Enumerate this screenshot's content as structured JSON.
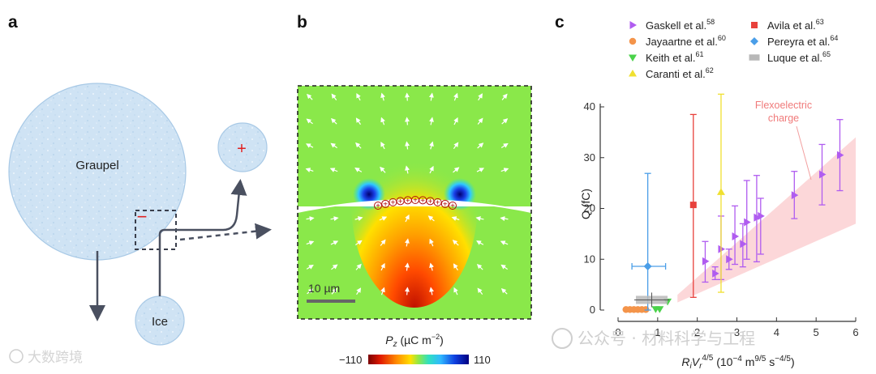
{
  "panels": {
    "a": {
      "label": "a",
      "big_particle": "Graupel",
      "small_particle": "Ice",
      "big_charge": "−",
      "small_charge": "+"
    },
    "b": {
      "label": "b",
      "scalebar": "10 µm",
      "colorbar_title_main": "P",
      "colorbar_title_sub": "z",
      "colorbar_title_unit": " (µC m",
      "colorbar_title_exp": "−2",
      "colorbar_title_close": ")",
      "colorbar_min": "−110",
      "colorbar_max": "110",
      "surface_charge": "+"
    },
    "c": {
      "label": "c",
      "ylabel": "Q (fC)",
      "xlabel_a": "R",
      "xlabel_a_sub": "i",
      "xlabel_b": "V",
      "xlabel_b_sub": "r",
      "xlabel_b_sup": "4/5",
      "xlabel_rest": " (10",
      "xlabel_exp1": "−4",
      "xlabel_m": " m",
      "xlabel_exp2": "9/5",
      "xlabel_s": " s",
      "xlabel_exp3": "−4/5",
      "xlabel_close": ")",
      "band_label_line1": "Flexoelectric",
      "band_label_line2": "charge",
      "x_ticks": [
        "0",
        "1",
        "2",
        "3",
        "4",
        "5",
        "6"
      ],
      "y_ticks": [
        "0",
        "10",
        "20",
        "30",
        "40"
      ]
    }
  },
  "legend": [
    {
      "name": "Gaskell et al.",
      "ref": "58",
      "marker": "triangle-right",
      "color": "#b05cf0"
    },
    {
      "name": "Jayaartne et al.",
      "ref": "60",
      "marker": "circle",
      "color": "#f4944a"
    },
    {
      "name": "Keith et al.",
      "ref": "61",
      "marker": "triangle-down",
      "color": "#4ad24a"
    },
    {
      "name": "Caranti et al.",
      "ref": "62",
      "marker": "triangle-up",
      "color": "#f0e030"
    },
    {
      "name": "Avila et al.",
      "ref": "63",
      "marker": "square",
      "color": "#e8413c"
    },
    {
      "name": "Pereyra et al.",
      "ref": "64",
      "marker": "diamond",
      "color": "#4a9ee8"
    },
    {
      "name": "Luque et al.",
      "ref": "65",
      "marker": "rect",
      "color": "#b8b8b8"
    }
  ],
  "chart_data": {
    "type": "scatter",
    "xlim": [
      0,
      6
    ],
    "ylim": [
      0,
      40
    ],
    "x_ticks": [
      0,
      1,
      2,
      3,
      4,
      5,
      6
    ],
    "y_ticks": [
      0,
      10,
      20,
      30,
      40
    ],
    "band": {
      "lower": [
        [
          1.5,
          1.5
        ],
        [
          6.0,
          17.0
        ]
      ],
      "upper": [
        [
          1.5,
          3.0
        ],
        [
          6.0,
          34.0
        ]
      ]
    },
    "series": [
      {
        "name": "Gaskell et al.",
        "points": [
          {
            "x": 2.2,
            "y": 9.6,
            "err": [
              5.5,
              13.5
            ]
          },
          {
            "x": 2.45,
            "y": 7.2,
            "err": [
              6.0,
              8.5
            ]
          },
          {
            "x": 2.6,
            "y": 12.0,
            "err": [
              6.0,
              18.5
            ]
          },
          {
            "x": 2.8,
            "y": 10.0,
            "err": [
              8.0,
              12.0
            ]
          },
          {
            "x": 2.95,
            "y": 14.5,
            "err": [
              9.0,
              20.5
            ]
          },
          {
            "x": 3.15,
            "y": 13.0,
            "err": [
              8.5,
              17.0
            ]
          },
          {
            "x": 3.25,
            "y": 17.3,
            "err": [
              10.0,
              25.5
            ]
          },
          {
            "x": 3.5,
            "y": 18.2,
            "err": [
              9.5,
              26.5
            ]
          },
          {
            "x": 3.6,
            "y": 18.5,
            "err": [
              11.0,
              22.0
            ]
          },
          {
            "x": 4.45,
            "y": 22.6,
            "err": [
              18.0,
              27.3
            ]
          },
          {
            "x": 5.15,
            "y": 26.7,
            "err": [
              20.7,
              32.6
            ]
          },
          {
            "x": 5.6,
            "y": 30.5,
            "err": [
              23.5,
              37.5
            ]
          }
        ]
      },
      {
        "name": "Jayaartne et al.",
        "points": [
          {
            "x": 0.2,
            "y": 0.1
          },
          {
            "x": 0.3,
            "y": 0.1
          },
          {
            "x": 0.4,
            "y": 0.1
          },
          {
            "x": 0.5,
            "y": 0.1
          },
          {
            "x": 0.6,
            "y": 0.1
          },
          {
            "x": 0.7,
            "y": 0.1
          }
        ]
      },
      {
        "name": "Keith et al.",
        "points": [
          {
            "x": 1.25,
            "y": 1.7
          },
          {
            "x": 0.95,
            "y": 0.2
          },
          {
            "x": 1.05,
            "y": 0.2
          }
        ]
      },
      {
        "name": "Caranti et al.",
        "points": [
          {
            "x": 2.6,
            "y": 23.2,
            "err": [
              3.5,
              42.5
            ]
          }
        ]
      },
      {
        "name": "Avila et al.",
        "points": [
          {
            "x": 1.9,
            "y": 20.7,
            "err": [
              2.5,
              38.5
            ]
          }
        ]
      },
      {
        "name": "Pereyra et al.",
        "points": [
          {
            "x": 0.75,
            "y": 8.6,
            "err": [
              0.0,
              26.9
            ],
            "xerr": [
              0.35,
              1.2
            ]
          }
        ]
      },
      {
        "name": "Luque et al.",
        "points": [
          {
            "x": 0.85,
            "y": 2.0,
            "box": [
              0.45,
              1.25,
              1.2,
              2.8
            ]
          }
        ]
      }
    ]
  },
  "watermark": {
    "left": "大数跨境",
    "right": "公众号 · 材料科学与工程"
  }
}
